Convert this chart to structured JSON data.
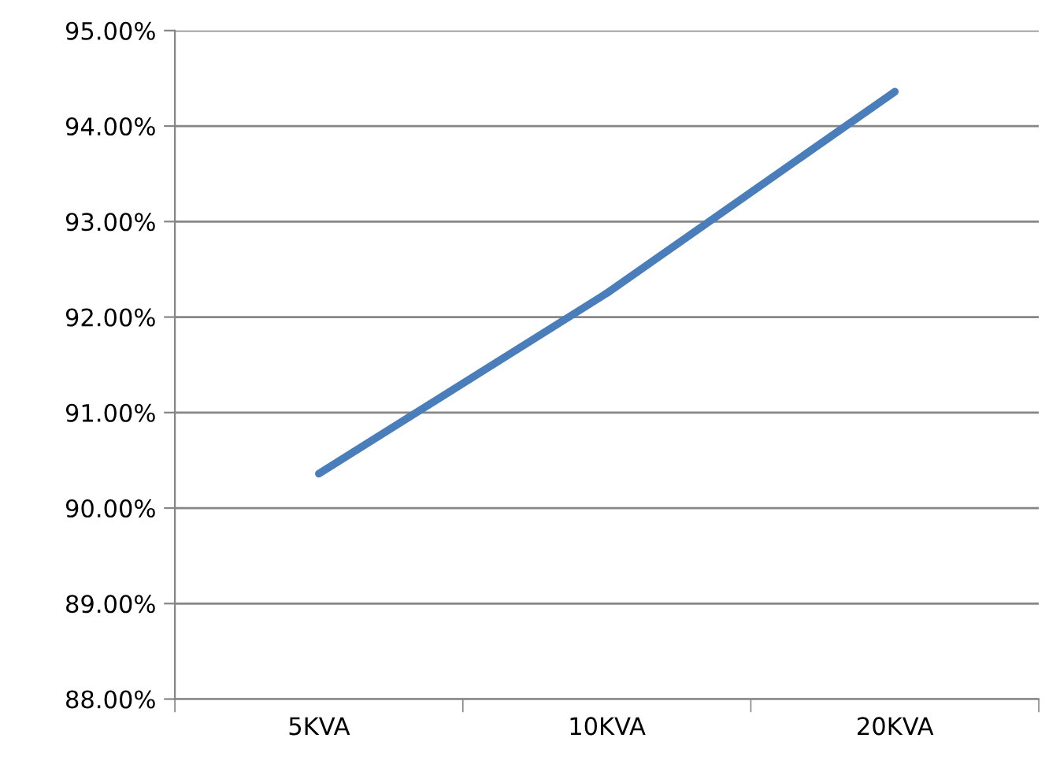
{
  "chart_data": {
    "type": "line",
    "categories": [
      "5KVA",
      "10KVA",
      "20KVA"
    ],
    "series": [
      {
        "color": "#4a7ebb",
        "values": [
          90.36,
          92.25,
          94.36
        ]
      }
    ],
    "ylim": [
      88,
      95
    ],
    "yticks": [
      {
        "value": 88,
        "label": "88.00%"
      },
      {
        "value": 89,
        "label": "89.00%"
      },
      {
        "value": 90,
        "label": "90.00%"
      },
      {
        "value": 91,
        "label": "91.00%"
      },
      {
        "value": 92,
        "label": "92.00%"
      },
      {
        "value": 93,
        "label": "93.00%"
      },
      {
        "value": 94,
        "label": "94.00%"
      },
      {
        "value": 95,
        "label": "95.00%"
      }
    ],
    "grid": "y",
    "legend": false,
    "marker": "none",
    "line_style": "solid"
  }
}
